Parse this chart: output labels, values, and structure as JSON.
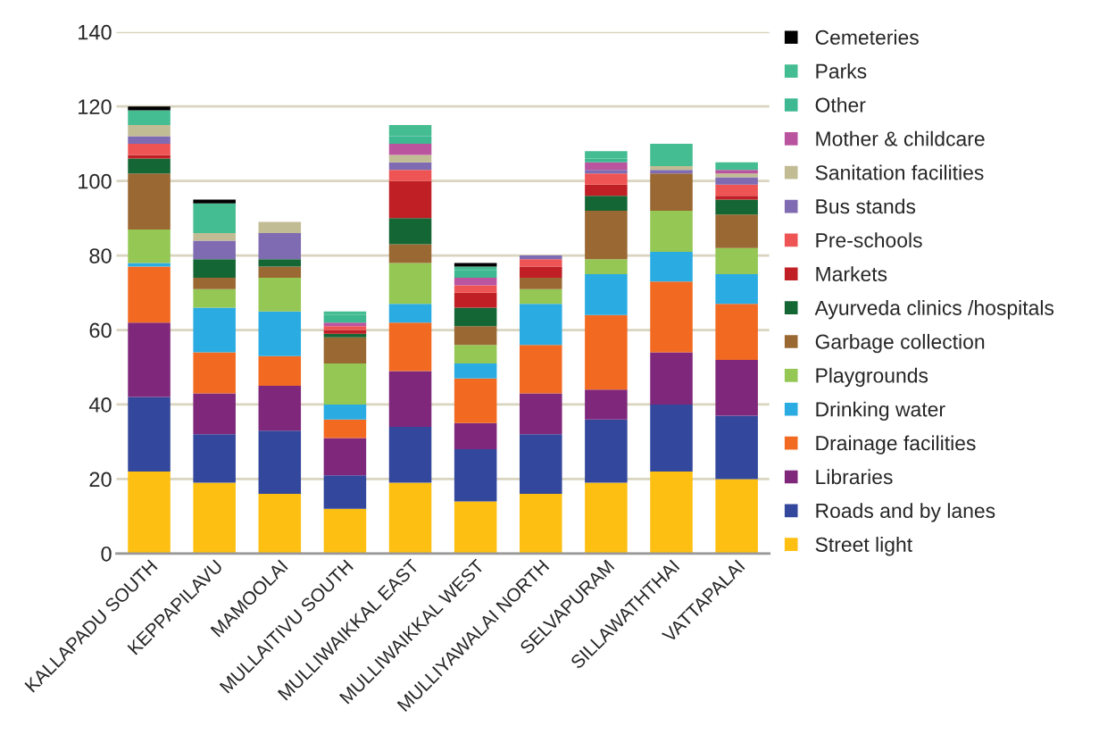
{
  "chart_data": {
    "type": "bar",
    "stacked": true,
    "categories": [
      "KALLAPADU SOUTH",
      "KEPPAPILAVU",
      "MAMOOLAI",
      "MULLAITIVU SOUTH",
      "MULLIWAIKKAL EAST",
      "MULLIWAIKKAL WEST",
      "MULLIYAWALAI NORTH",
      "SELVAPURAM",
      "SILLAWATHTHAI",
      "VATTAPALAI"
    ],
    "series": [
      {
        "name": "Street light",
        "color": "#fdbf11",
        "values": [
          22,
          19,
          16,
          12,
          19,
          14,
          16,
          19,
          22,
          20
        ]
      },
      {
        "name": "Roads and by lanes",
        "color": "#33479c",
        "values": [
          20,
          13,
          17,
          9,
          15,
          14,
          16,
          17,
          18,
          17
        ]
      },
      {
        "name": "Libraries",
        "color": "#7f277b",
        "values": [
          20,
          11,
          12,
          10,
          15,
          7,
          11,
          8,
          14,
          15
        ]
      },
      {
        "name": "Drainage facilities",
        "color": "#f26a21",
        "values": [
          15,
          11,
          8,
          5,
          13,
          12,
          13,
          20,
          19,
          15
        ]
      },
      {
        "name": "Drinking water",
        "color": "#2aace2",
        "values": [
          1,
          12,
          12,
          4,
          5,
          4,
          11,
          11,
          8,
          8
        ]
      },
      {
        "name": "Playgrounds",
        "color": "#94c754",
        "values": [
          9,
          5,
          9,
          11,
          11,
          5,
          4,
          4,
          11,
          7
        ]
      },
      {
        "name": "Garbage collection",
        "color": "#9a6832",
        "values": [
          15,
          3,
          3,
          7,
          5,
          5,
          3,
          13,
          10,
          9
        ]
      },
      {
        "name": "Ayurveda clinics /hospitals",
        "color": "#156635",
        "values": [
          4,
          5,
          2,
          1,
          7,
          5,
          0,
          4,
          0,
          4
        ]
      },
      {
        "name": "Markets",
        "color": "#bf1f25",
        "values": [
          1,
          0,
          0,
          1,
          10,
          4,
          3,
          3,
          0,
          1
        ]
      },
      {
        "name": "Pre-schools",
        "color": "#ef5455",
        "values": [
          3,
          0,
          0,
          1,
          3,
          2,
          2,
          3,
          0,
          3
        ]
      },
      {
        "name": "Bus stands",
        "color": "#7f6bb1",
        "values": [
          2,
          5,
          7,
          0,
          2,
          0,
          1,
          1,
          1,
          2
        ]
      },
      {
        "name": "Sanitation facilities",
        "color": "#c2bc94",
        "values": [
          3,
          2,
          3,
          0,
          2,
          0,
          0,
          0,
          1,
          1
        ]
      },
      {
        "name": "Mother & childcare",
        "color": "#bb549f",
        "values": [
          0,
          0,
          0,
          1,
          3,
          2,
          0,
          2,
          0,
          1
        ]
      },
      {
        "name": "Other",
        "color": "#3db890",
        "values": [
          0,
          0,
          0,
          2,
          2,
          2,
          0,
          1,
          0,
          0
        ]
      },
      {
        "name": "Parks",
        "color": "#44bd92",
        "values": [
          4,
          8,
          0,
          1,
          3,
          1,
          0,
          2,
          6,
          2
        ]
      },
      {
        "name": "Cemeteries",
        "color": "#000000",
        "values": [
          1,
          1,
          0,
          0,
          0,
          1,
          0,
          0,
          0,
          0
        ]
      }
    ],
    "ylim": [
      0,
      140
    ],
    "yticks": [
      0,
      20,
      40,
      60,
      80,
      100,
      120,
      140
    ],
    "grid": "y",
    "legend": "right"
  }
}
